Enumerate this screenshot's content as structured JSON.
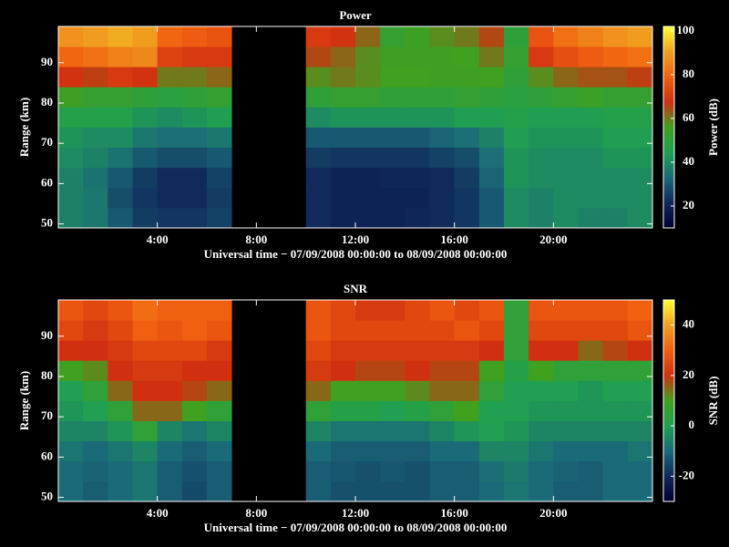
{
  "chart_data": [
    {
      "type": "heatmap",
      "title": "Power",
      "xlabel": "Universal time − 07/09/2008 00:00:00 to 08/09/2008 00:00:00",
      "ylabel": "Range (km)",
      "colorbar_label": "Power (dB)",
      "xbins": [
        0,
        1,
        2,
        3,
        4,
        5,
        6,
        7,
        8,
        9,
        10,
        11,
        12,
        13,
        14,
        15,
        16,
        17,
        18,
        19,
        20,
        21,
        22,
        23,
        24
      ],
      "ybins": [
        49,
        54,
        59,
        64,
        69,
        74,
        79,
        84,
        89,
        94,
        99
      ],
      "xlim": [
        0,
        24
      ],
      "ylim": [
        49,
        99
      ],
      "xticks": [
        {
          "value": 4,
          "label": "4:00"
        },
        {
          "value": 8,
          "label": "8:00"
        },
        {
          "value": 12,
          "label": "12:00"
        },
        {
          "value": 16,
          "label": "16:00"
        },
        {
          "value": 20,
          "label": "20:00"
        }
      ],
      "yticks": [
        50,
        60,
        70,
        80,
        90
      ],
      "clim": [
        10,
        102
      ],
      "cticks": [
        20,
        40,
        60,
        80,
        100
      ],
      "colormap": [
        "#000030",
        "#10285a",
        "#1a6a78",
        "#20a050",
        "#40a020",
        "#d03010",
        "#f06010",
        "#f0a020",
        "#ffff30"
      ],
      "z": [
        [
          38,
          36,
          30,
          25,
          24,
          24,
          26,
          null,
          null,
          null,
          22,
          20,
          20,
          20,
          21,
          22,
          24,
          30,
          40,
          38,
          40,
          38,
          38,
          40
        ],
        [
          38,
          36,
          28,
          24,
          22,
          22,
          25,
          null,
          null,
          null,
          22,
          20,
          20,
          20,
          20,
          22,
          24,
          30,
          40,
          38,
          40,
          40,
          40,
          40
        ],
        [
          38,
          35,
          30,
          25,
          22,
          22,
          26,
          null,
          null,
          null,
          22,
          20,
          20,
          21,
          21,
          22,
          25,
          32,
          42,
          40,
          40,
          40,
          40,
          40
        ],
        [
          40,
          38,
          35,
          30,
          28,
          28,
          30,
          null,
          null,
          null,
          25,
          24,
          24,
          24,
          24,
          26,
          28,
          34,
          42,
          40,
          40,
          40,
          42,
          42
        ],
        [
          42,
          40,
          40,
          36,
          34,
          34,
          36,
          null,
          null,
          null,
          30,
          30,
          30,
          30,
          30,
          32,
          34,
          38,
          44,
          42,
          42,
          42,
          44,
          44
        ],
        [
          46,
          46,
          46,
          42,
          40,
          42,
          44,
          null,
          null,
          null,
          40,
          42,
          42,
          42,
          42,
          42,
          44,
          44,
          46,
          44,
          44,
          44,
          46,
          46
        ],
        [
          55,
          52,
          52,
          50,
          48,
          50,
          52,
          null,
          null,
          null,
          50,
          52,
          52,
          50,
          50,
          50,
          52,
          50,
          48,
          50,
          52,
          54,
          52,
          52
        ],
        [
          68,
          66,
          70,
          68,
          60,
          60,
          62,
          null,
          null,
          null,
          58,
          60,
          58,
          56,
          56,
          55,
          55,
          56,
          50,
          58,
          62,
          64,
          64,
          66
        ],
        [
          80,
          82,
          85,
          86,
          72,
          70,
          70,
          null,
          null,
          null,
          65,
          62,
          58,
          55,
          55,
          55,
          56,
          60,
          52,
          70,
          75,
          78,
          80,
          82
        ],
        [
          88,
          90,
          92,
          90,
          80,
          78,
          76,
          null,
          null,
          null,
          70,
          68,
          62,
          52,
          55,
          58,
          60,
          65,
          50,
          76,
          82,
          85,
          88,
          90
        ]
      ]
    },
    {
      "type": "heatmap",
      "title": "SNR",
      "xlabel": "Universal time − 07/09/2008 00:00:00 to 08/09/2008 00:00:00",
      "ylabel": "Range (km)",
      "colorbar_label": "SNR (dB)",
      "xbins": [
        0,
        1,
        2,
        3,
        4,
        5,
        6,
        7,
        8,
        9,
        10,
        11,
        12,
        13,
        14,
        15,
        16,
        17,
        18,
        19,
        20,
        21,
        22,
        23,
        24
      ],
      "ybins": [
        49,
        54,
        59,
        64,
        69,
        74,
        79,
        84,
        89,
        94,
        99
      ],
      "xlim": [
        0,
        24
      ],
      "ylim": [
        49,
        99
      ],
      "xticks": [
        {
          "value": 4,
          "label": "4:00"
        },
        {
          "value": 8,
          "label": "8:00"
        },
        {
          "value": 12,
          "label": "12:00"
        },
        {
          "value": 16,
          "label": "16:00"
        },
        {
          "value": 20,
          "label": "20:00"
        }
      ],
      "yticks": [
        50,
        60,
        70,
        80,
        90
      ],
      "clim": [
        -30,
        50
      ],
      "cticks": [
        -20,
        0,
        20,
        40
      ],
      "colormap": [
        "#000030",
        "#10285a",
        "#1a6a78",
        "#20a050",
        "#40a020",
        "#d03010",
        "#f06010",
        "#f0a020",
        "#ffff30"
      ],
      "z": [
        [
          -10,
          -12,
          -10,
          -8,
          -12,
          -15,
          -12,
          null,
          null,
          null,
          -12,
          -14,
          -14,
          -14,
          -14,
          -12,
          -12,
          -10,
          -8,
          -10,
          -12,
          -12,
          -10,
          -10
        ],
        [
          -10,
          -11,
          -10,
          -8,
          -12,
          -14,
          -12,
          null,
          null,
          null,
          -12,
          -13,
          -14,
          -13,
          -14,
          -12,
          -12,
          -9,
          -7,
          -10,
          -11,
          -12,
          -10,
          -10
        ],
        [
          -8,
          -10,
          -8,
          -5,
          -10,
          -12,
          -10,
          null,
          null,
          null,
          -10,
          -12,
          -12,
          -12,
          -12,
          -10,
          -10,
          -5,
          -5,
          -8,
          -10,
          -10,
          -10,
          -8
        ],
        [
          -5,
          -5,
          -2,
          5,
          -5,
          -8,
          -5,
          null,
          null,
          null,
          -5,
          -8,
          -8,
          -8,
          -8,
          -5,
          -2,
          0,
          -2,
          -5,
          -5,
          -5,
          -5,
          -5
        ],
        [
          -2,
          0,
          5,
          15,
          15,
          10,
          5,
          null,
          null,
          null,
          5,
          2,
          2,
          0,
          2,
          5,
          10,
          0,
          0,
          -2,
          -2,
          -2,
          -2,
          -2
        ],
        [
          0,
          5,
          15,
          20,
          20,
          18,
          15,
          null,
          null,
          null,
          15,
          10,
          10,
          10,
          12,
          15,
          15,
          5,
          0,
          0,
          0,
          -2,
          0,
          0
        ],
        [
          10,
          12,
          20,
          22,
          22,
          20,
          20,
          null,
          null,
          null,
          22,
          20,
          18,
          18,
          20,
          18,
          18,
          10,
          2,
          10,
          5,
          5,
          5,
          5
        ],
        [
          20,
          20,
          22,
          25,
          25,
          25,
          22,
          null,
          null,
          null,
          25,
          22,
          22,
          22,
          22,
          22,
          22,
          20,
          5,
          20,
          20,
          15,
          18,
          20
        ],
        [
          25,
          22,
          25,
          30,
          28,
          30,
          28,
          null,
          null,
          null,
          28,
          25,
          25,
          25,
          25,
          25,
          28,
          25,
          5,
          25,
          25,
          25,
          25,
          28
        ],
        [
          28,
          25,
          28,
          32,
          30,
          30,
          30,
          null,
          null,
          null,
          28,
          25,
          22,
          22,
          25,
          28,
          25,
          28,
          5,
          28,
          28,
          28,
          28,
          30
        ]
      ]
    }
  ]
}
